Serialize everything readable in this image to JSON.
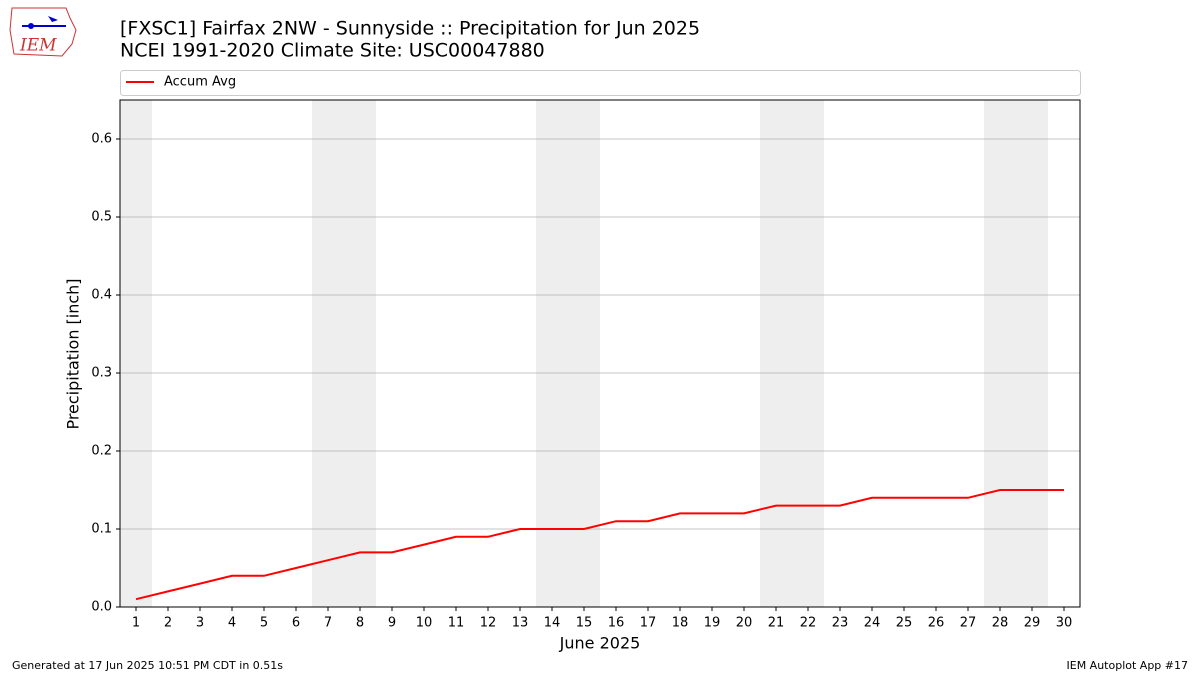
{
  "logo_text": "IEM",
  "footer_left": "Generated at 17 Jun 2025 10:51 PM CDT in 0.51s",
  "footer_right": "IEM Autoplot App #17",
  "chart_data": {
    "type": "line",
    "title": "[FXSC1] Fairfax 2NW - Sunnyside :: Precipitation for Jun 2025",
    "subtitle": "NCEI 1991-2020 Climate Site: USC00047880",
    "x_label": "June 2025",
    "y_label": "Precipitation [inch]",
    "x": [
      1,
      2,
      3,
      4,
      5,
      6,
      7,
      8,
      9,
      10,
      11,
      12,
      13,
      14,
      15,
      16,
      17,
      18,
      19,
      20,
      21,
      22,
      23,
      24,
      25,
      26,
      27,
      28,
      29,
      30
    ],
    "series": [
      {
        "name": "Accum Avg",
        "color": "#ff0000",
        "values": [
          0.01,
          0.02,
          0.03,
          0.04,
          0.04,
          0.05,
          0.06,
          0.07,
          0.07,
          0.08,
          0.09,
          0.09,
          0.1,
          0.1,
          0.1,
          0.11,
          0.11,
          0.12,
          0.12,
          0.12,
          0.13,
          0.13,
          0.13,
          0.14,
          0.14,
          0.14,
          0.14,
          0.15,
          0.15,
          0.15
        ]
      }
    ],
    "shaded_spans": [
      [
        0.5,
        1.5
      ],
      [
        6.5,
        8.5
      ],
      [
        13.5,
        15.5
      ],
      [
        20.5,
        22.5
      ],
      [
        27.5,
        29.5
      ]
    ],
    "shade_color": "#eeeeee",
    "xlim": [
      0.5,
      30.5
    ],
    "ylim": [
      0,
      0.65
    ],
    "xticks": [
      1,
      2,
      3,
      4,
      5,
      6,
      7,
      8,
      9,
      10,
      11,
      12,
      13,
      14,
      15,
      16,
      17,
      18,
      19,
      20,
      21,
      22,
      23,
      24,
      25,
      26,
      27,
      28,
      29,
      30
    ],
    "yticks": [
      {
        "value": 0,
        "label": "0.0"
      },
      0.1,
      0.2,
      0.3,
      0.4,
      0.5,
      0.6
    ],
    "grid": true,
    "legend": "top"
  }
}
